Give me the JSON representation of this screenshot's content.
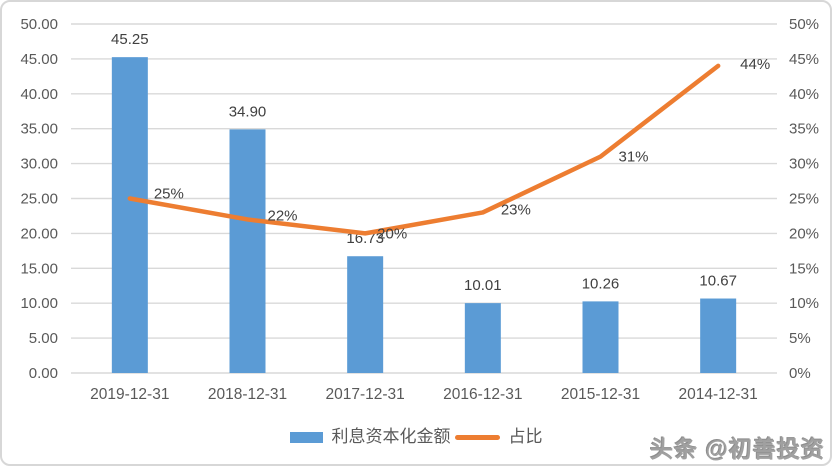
{
  "chart_data": {
    "type": "bar+line",
    "title": "",
    "categories": [
      "2019-12-31",
      "2018-12-31",
      "2017-12-31",
      "2016-12-31",
      "2015-12-31",
      "2014-12-31"
    ],
    "series": [
      {
        "name": "利息资本化金额",
        "type": "bar",
        "axis": "left",
        "color": "#5B9BD5",
        "values": [
          45.25,
          34.9,
          16.73,
          10.01,
          10.26,
          10.67
        ],
        "labels": [
          "45.25",
          "34.90",
          "16.73",
          "10.01",
          "10.26",
          "10.67"
        ]
      },
      {
        "name": "占比",
        "type": "line",
        "axis": "right",
        "color": "#ED7D31",
        "values": [
          25,
          22,
          20,
          23,
          31,
          44
        ],
        "labels": [
          "25%",
          "22%",
          "20%",
          "23%",
          "31%",
          "44%"
        ]
      }
    ],
    "left_axis": {
      "min": 0,
      "max": 50,
      "step": 5,
      "tick_labels": [
        "0.00",
        "5.00",
        "10.00",
        "15.00",
        "20.00",
        "25.00",
        "30.00",
        "35.00",
        "40.00",
        "45.00",
        "50.00"
      ]
    },
    "right_axis": {
      "min": 0,
      "max": 50,
      "step": 5,
      "tick_labels": [
        "0%",
        "5%",
        "10%",
        "15%",
        "20%",
        "25%",
        "30%",
        "35%",
        "40%",
        "45%",
        "50%"
      ]
    },
    "grid": true,
    "legend_position": "bottom"
  },
  "colors": {
    "bar": "#5B9BD5",
    "line": "#ED7D31",
    "grid": "#D9D9D9",
    "axis_text": "#595959",
    "label_text": "#404040",
    "watermark_text": "#a0a0a0"
  },
  "watermark": {
    "text": "头条 @初善投资"
  }
}
